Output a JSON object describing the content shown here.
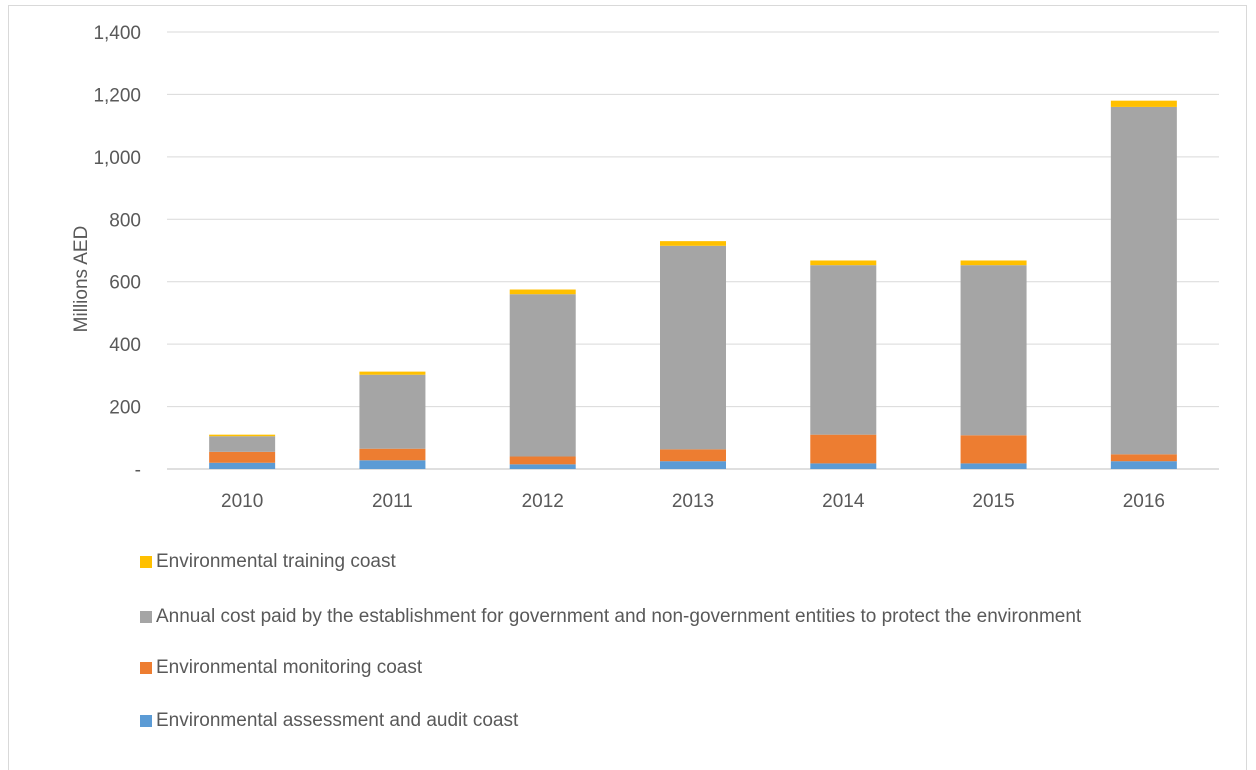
{
  "chart_data": {
    "type": "bar",
    "stacked": true,
    "categories": [
      "2010",
      "2011",
      "2012",
      "2013",
      "2014",
      "2015",
      "2016"
    ],
    "series": [
      {
        "name": "Environmental assessment and audit coast",
        "color": "#5b9bd5",
        "values": [
          20,
          28,
          15,
          25,
          18,
          18,
          25
        ]
      },
      {
        "name": "Environmental monitoring coast",
        "color": "#ed7d31",
        "values": [
          35,
          37,
          25,
          38,
          92,
          90,
          22
        ]
      },
      {
        "name": "Annual cost paid by the establishment for government and non-government entities to protect the environment",
        "color": "#a5a5a5",
        "values": [
          50,
          237,
          520,
          652,
          543,
          545,
          1113
        ]
      },
      {
        "name": "Environmental training coast",
        "color": "#ffc000",
        "values": [
          5,
          10,
          15,
          15,
          15,
          15,
          20
        ]
      }
    ],
    "ylabel": "Millions AED",
    "xlabel": "",
    "title": "",
    "ylim": [
      0,
      1400
    ],
    "yticks": [
      0,
      200,
      400,
      600,
      800,
      1000,
      1200,
      1400
    ],
    "ytick_labels": [
      "-",
      "200",
      "400",
      "600",
      "800",
      "1,000",
      "1,200",
      "1,400"
    ],
    "grid": true,
    "legend_position": "bottom",
    "legend_order": [
      3,
      2,
      1,
      0
    ]
  }
}
